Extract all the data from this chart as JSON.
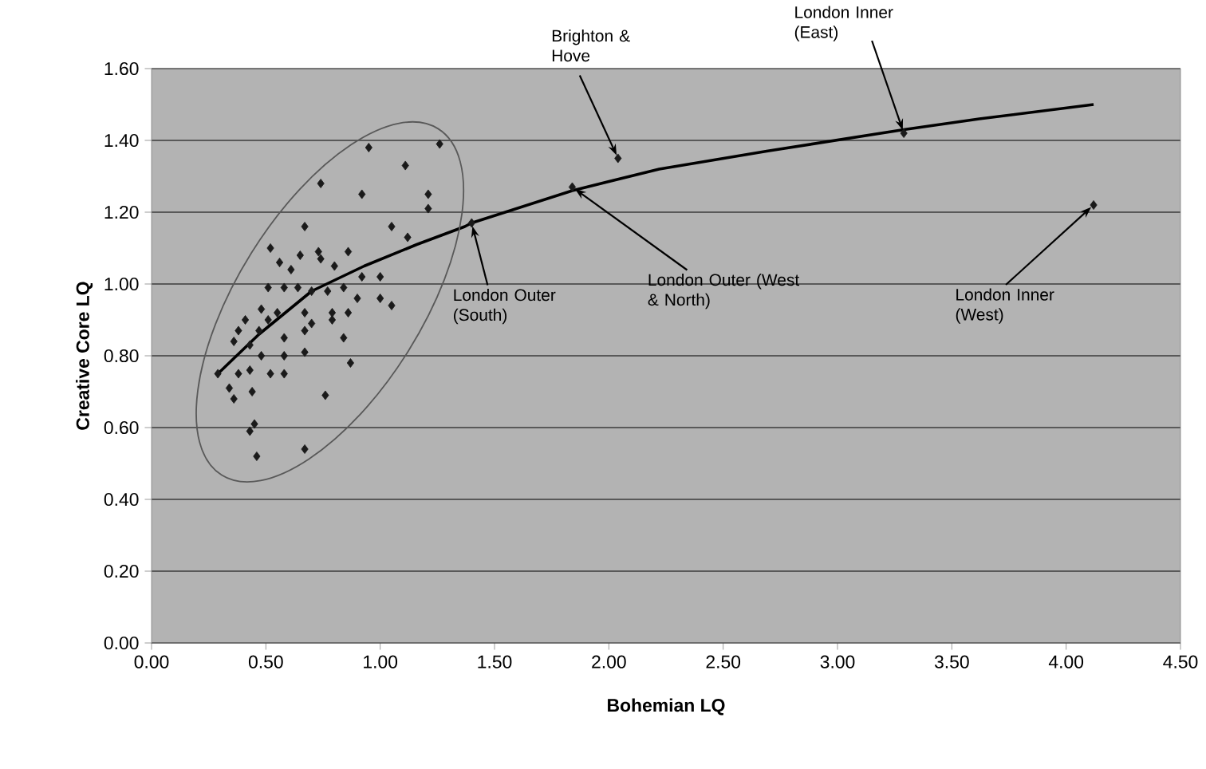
{
  "chart_data": {
    "type": "scatter",
    "xlabel": "Bohemian LQ",
    "ylabel": "Creative Core LQ",
    "xlim": [
      0,
      4.5
    ],
    "ylim": [
      0,
      1.6
    ],
    "xticks": [
      {
        "value": 0,
        "label": "0.00"
      },
      {
        "value": 0.5,
        "label": "0.50"
      },
      {
        "value": 1,
        "label": "1.00"
      },
      {
        "value": 1.5,
        "label": "1.50"
      },
      {
        "value": 2,
        "label": "2.00"
      },
      {
        "value": 2.5,
        "label": "2.50"
      },
      {
        "value": 3,
        "label": "3.00"
      },
      {
        "value": 3.5,
        "label": "3.50"
      },
      {
        "value": 4,
        "label": "4.00"
      },
      {
        "value": 4.5,
        "label": "4.50"
      }
    ],
    "yticks": [
      {
        "value": 0,
        "label": "0.00"
      },
      {
        "value": 0.2,
        "label": "0.20"
      },
      {
        "value": 0.4,
        "label": "0.40"
      },
      {
        "value": 0.6,
        "label": "0.60"
      },
      {
        "value": 0.8,
        "label": "0.80"
      },
      {
        "value": 1,
        "label": "1.00"
      },
      {
        "value": 1.2,
        "label": "1.20"
      },
      {
        "value": 1.4,
        "label": "1.40"
      },
      {
        "value": 1.6,
        "label": "1.60"
      }
    ],
    "grid": "y",
    "marker": "diamond",
    "series": [
      {
        "color": "#1a1a1a",
        "x": [
          0.95,
          1.26,
          1.11,
          0.74,
          0.92,
          1.21,
          1.21,
          0.67,
          1.05,
          1.12,
          0.52,
          0.73,
          0.86,
          0.65,
          0.74,
          0.56,
          0.8,
          0.61,
          0.92,
          1.0,
          0.51,
          0.58,
          0.64,
          0.7,
          0.77,
          0.84,
          0.9,
          1.0,
          1.05,
          0.48,
          0.55,
          0.67,
          0.79,
          0.86,
          0.41,
          0.51,
          0.7,
          0.79,
          0.38,
          0.47,
          0.67,
          0.58,
          0.36,
          0.43,
          0.48,
          0.67,
          0.84,
          0.58,
          0.87,
          0.29,
          0.38,
          0.43,
          0.52,
          0.58,
          0.34,
          0.36,
          0.44,
          0.76,
          0.45,
          0.43,
          0.46,
          0.67,
          1.4,
          1.84,
          2.04,
          3.29,
          4.12
        ],
        "values": [
          1.38,
          1.39,
          1.33,
          1.28,
          1.25,
          1.25,
          1.21,
          1.16,
          1.16,
          1.13,
          1.1,
          1.09,
          1.09,
          1.08,
          1.07,
          1.06,
          1.05,
          1.04,
          1.02,
          1.02,
          0.99,
          0.99,
          0.99,
          0.98,
          0.98,
          0.99,
          0.96,
          0.96,
          0.94,
          0.93,
          0.92,
          0.92,
          0.92,
          0.92,
          0.9,
          0.9,
          0.89,
          0.9,
          0.87,
          0.87,
          0.87,
          0.85,
          0.84,
          0.83,
          0.8,
          0.81,
          0.85,
          0.8,
          0.78,
          0.75,
          0.75,
          0.76,
          0.75,
          0.75,
          0.71,
          0.68,
          0.7,
          0.69,
          0.61,
          0.59,
          0.52,
          0.54,
          1.17,
          1.27,
          1.35,
          1.42,
          1.22
        ]
      },
      {
        "type": "line",
        "color": "#000000",
        "marker": "none",
        "x": [
          0.29,
          0.47,
          0.7,
          0.93,
          1.16,
          1.37,
          1.4,
          1.84,
          2.22,
          2.69,
          3.29,
          3.62,
          4.12
        ],
        "values": [
          0.75,
          0.86,
          0.98,
          1.05,
          1.11,
          1.16,
          1.17,
          1.26,
          1.32,
          1.37,
          1.43,
          1.46,
          1.5
        ]
      }
    ],
    "annotations": [
      {
        "text": "Brighton & Hove",
        "x": 2.04,
        "y": 1.35
      },
      {
        "text": "London Inner (East)",
        "x": 3.29,
        "y": 1.42
      },
      {
        "text": "London Outer (South)",
        "x": 1.4,
        "y": 1.17
      },
      {
        "text": "London Outer (West & North)",
        "x": 1.84,
        "y": 1.27
      },
      {
        "text": "London Inner (West)",
        "x": 4.12,
        "y": 1.22
      }
    ]
  }
}
